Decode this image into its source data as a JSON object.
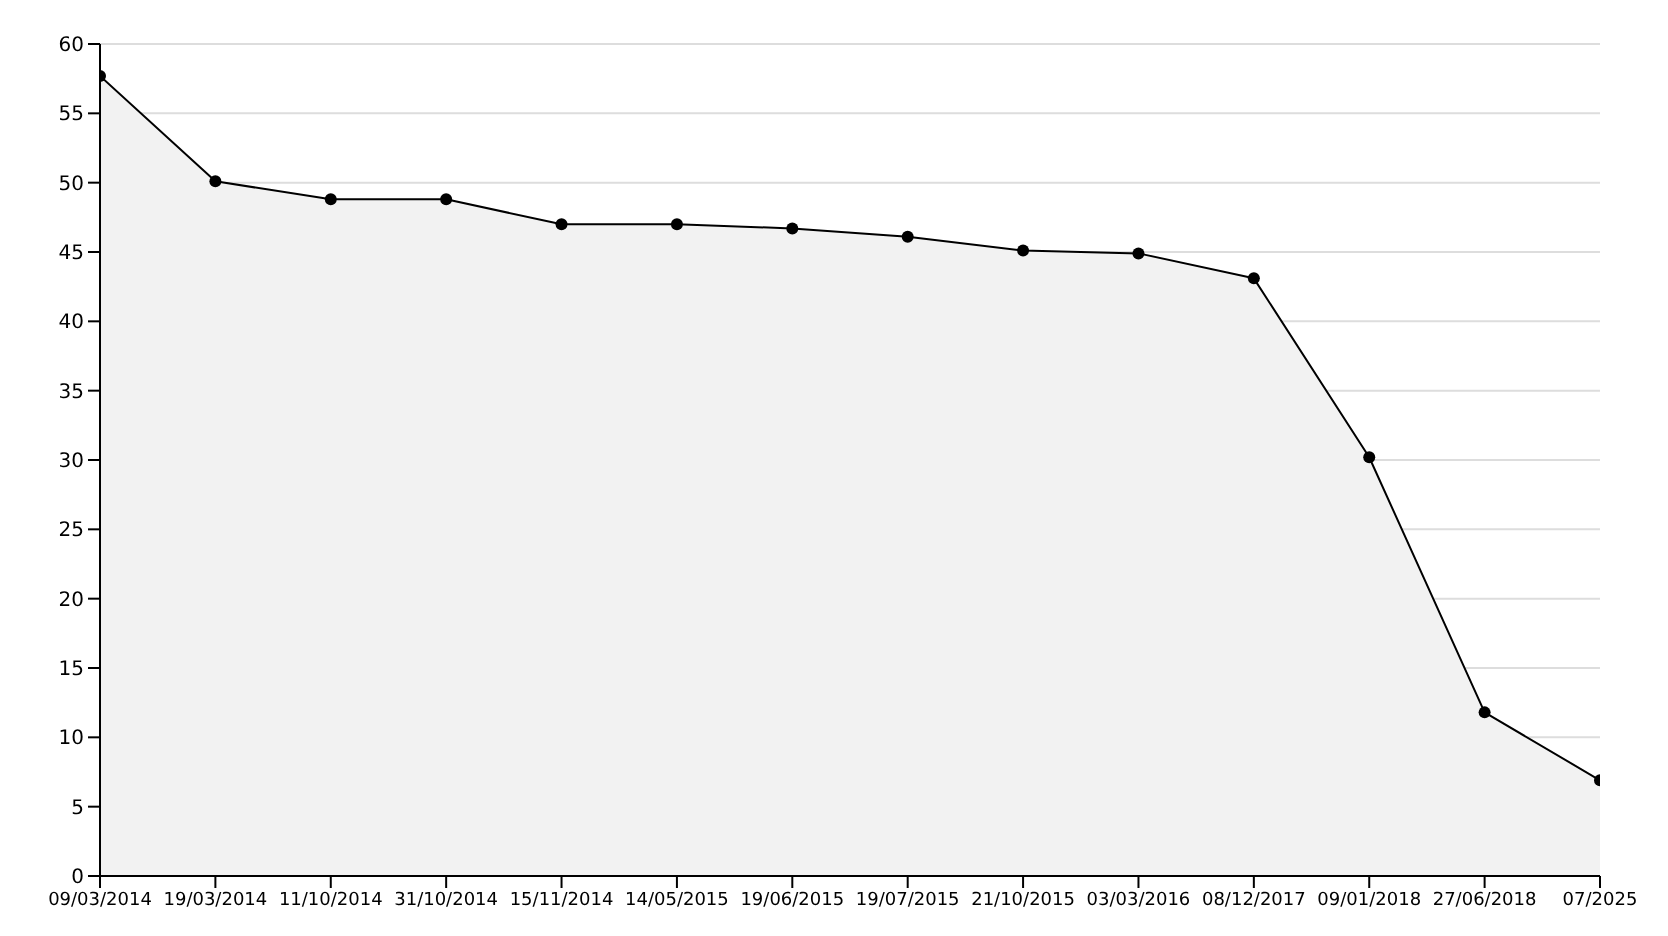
{
  "chart_data": {
    "type": "area",
    "categories": [
      "09/03/2014",
      "19/03/2014",
      "11/10/2014",
      "31/10/2014",
      "15/11/2014",
      "14/05/2015",
      "19/06/2015",
      "19/07/2015",
      "21/10/2015",
      "03/03/2016",
      "08/12/2017",
      "09/01/2018",
      "27/06/2018",
      "07/2025"
    ],
    "values": [
      57.7,
      50.1,
      48.8,
      48.8,
      47,
      47,
      46.7,
      46.1,
      45.1,
      44.9,
      43.1,
      30.2,
      11.8,
      6.9
    ],
    "color": "#000000",
    "ylim": [
      0,
      60
    ],
    "yticks": [
      0,
      5,
      10,
      15,
      20,
      25,
      30,
      35,
      40,
      45,
      50,
      55,
      60
    ],
    "grid": "y",
    "marker": "circle"
  }
}
